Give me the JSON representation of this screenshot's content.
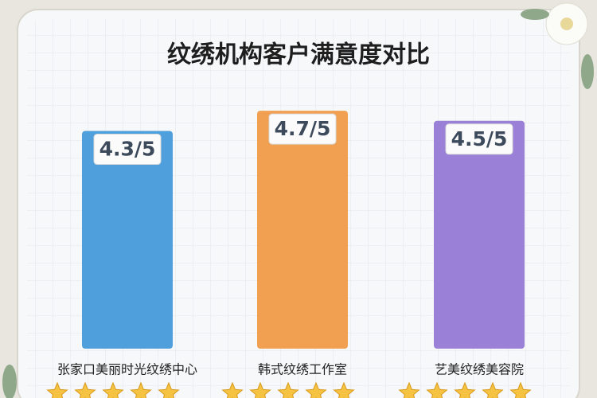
{
  "chart_data": {
    "type": "bar",
    "title": "纹绣机构客户满意度对比",
    "categories": [
      "张家口美丽时光纹绣中心",
      "韩式纹绣工作室",
      "艺美纹绣美容院"
    ],
    "values": [
      4.3,
      4.7,
      4.5
    ],
    "value_labels": [
      "4.3/5",
      "4.7/5",
      "4.5/5"
    ],
    "colors": [
      "#4f9fdc",
      "#f0a050",
      "#9a80d6"
    ],
    "ylim": [
      0,
      5
    ]
  }
}
